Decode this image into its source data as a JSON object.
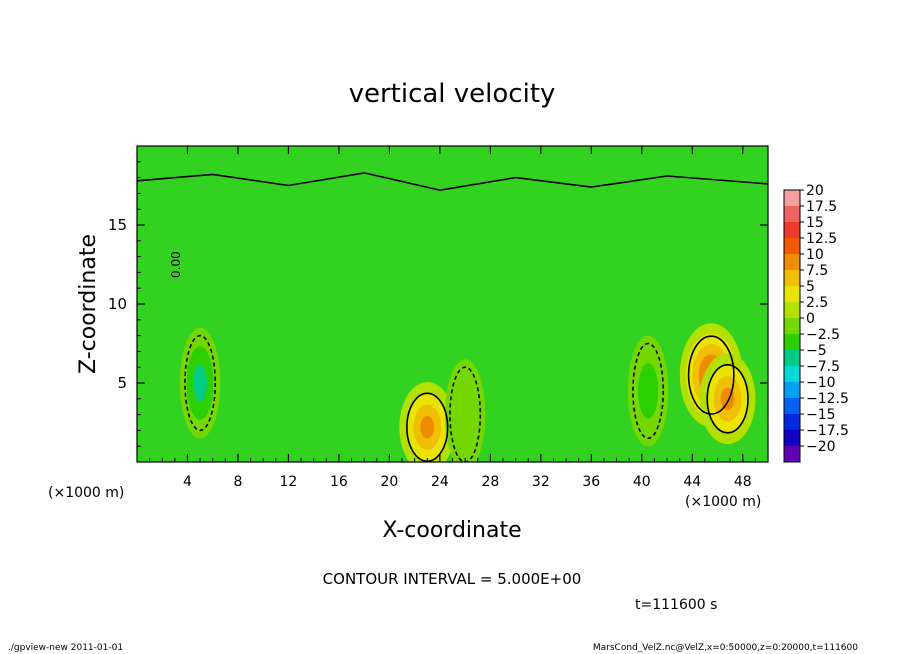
{
  "chart_data": {
    "type": "heatmap",
    "title": "vertical velocity",
    "xlabel": "X-coordinate",
    "ylabel": "Z-coordinate",
    "x_unit": "(×1000 m)",
    "y_unit": "(×1000 m)",
    "xlim": [
      0,
      50
    ],
    "ylim": [
      0,
      20
    ],
    "x_ticks": [
      4,
      8,
      12,
      16,
      20,
      24,
      28,
      32,
      36,
      40,
      44,
      48
    ],
    "y_ticks": [
      5,
      10,
      15
    ],
    "contour_label": "0.00",
    "contour_interval_text": "CONTOUR INTERVAL = 5.000E+00",
    "time_text": "t=111600 s",
    "colorbar": {
      "levels": [
        20,
        17.5,
        15,
        12.5,
        10,
        7.5,
        5,
        2.5,
        0,
        -2.5,
        -5,
        -7.5,
        -10,
        -12.5,
        -15,
        -17.5,
        -20
      ],
      "labels": [
        "20",
        "17.5",
        "15",
        "12.5",
        "10",
        "7.5",
        "5",
        "2.5",
        "0",
        "−2.5",
        "−5",
        "−7.5",
        "−10",
        "−12.5",
        "−15",
        "−17.5",
        "−20"
      ],
      "colors": [
        "#f4a0a0",
        "#ee6464",
        "#ea3c28",
        "#f05a00",
        "#f08c00",
        "#f0c000",
        "#e8e400",
        "#b4e000",
        "#74d800",
        "#2cd000",
        "#00cc88",
        "#00d8d8",
        "#00a0f0",
        "#0060f0",
        "#0028e0",
        "#1400c0",
        "#6000b0"
      ]
    },
    "features": [
      {
        "kind": "updraft",
        "x": 23.0,
        "z": 2.2,
        "peak": 10
      },
      {
        "kind": "updraft",
        "x": 45.5,
        "z": 5.5,
        "peak": 12.5
      },
      {
        "kind": "updraft",
        "x": 46.8,
        "z": 4.0,
        "peak": 10
      },
      {
        "kind": "downdraft",
        "x": 5.0,
        "z": 5.0,
        "peak": -7.5
      },
      {
        "kind": "downdraft",
        "x": 40.5,
        "z": 4.5,
        "peak": -5
      },
      {
        "kind": "downdraft",
        "x": 26.0,
        "z": 3.0,
        "peak": -2.5
      }
    ]
  },
  "footer": {
    "left": "./gpview-new  2011-01-01",
    "right": "MarsCond_VelZ.nc@VelZ,x=0:50000,z=0:20000,t=111600"
  }
}
